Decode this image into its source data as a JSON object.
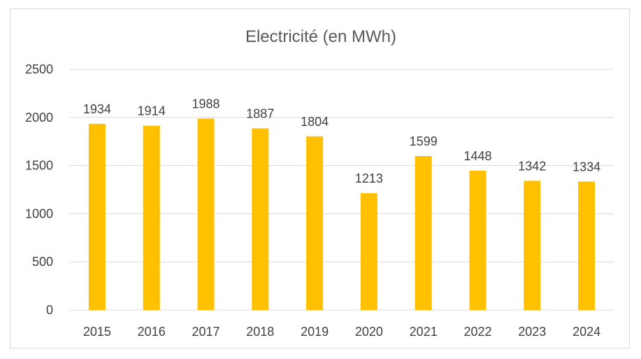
{
  "chart_data": {
    "type": "bar",
    "title": "Electricité (en MWh)",
    "xlabel": "",
    "ylabel": "",
    "categories": [
      "2015",
      "2016",
      "2017",
      "2018",
      "2019",
      "2020",
      "2021",
      "2022",
      "2023",
      "2024"
    ],
    "values": [
      1934,
      1914,
      1988,
      1887,
      1804,
      1213,
      1599,
      1448,
      1342,
      1334
    ],
    "ylim": [
      0,
      2500
    ],
    "yticks": [
      0,
      500,
      1000,
      1500,
      2000,
      2500
    ],
    "grid": true,
    "legend": "none",
    "colors": {
      "bar": "#FFC000",
      "grid": "#D9D9D9",
      "text": "#404040",
      "title": "#595959"
    }
  }
}
